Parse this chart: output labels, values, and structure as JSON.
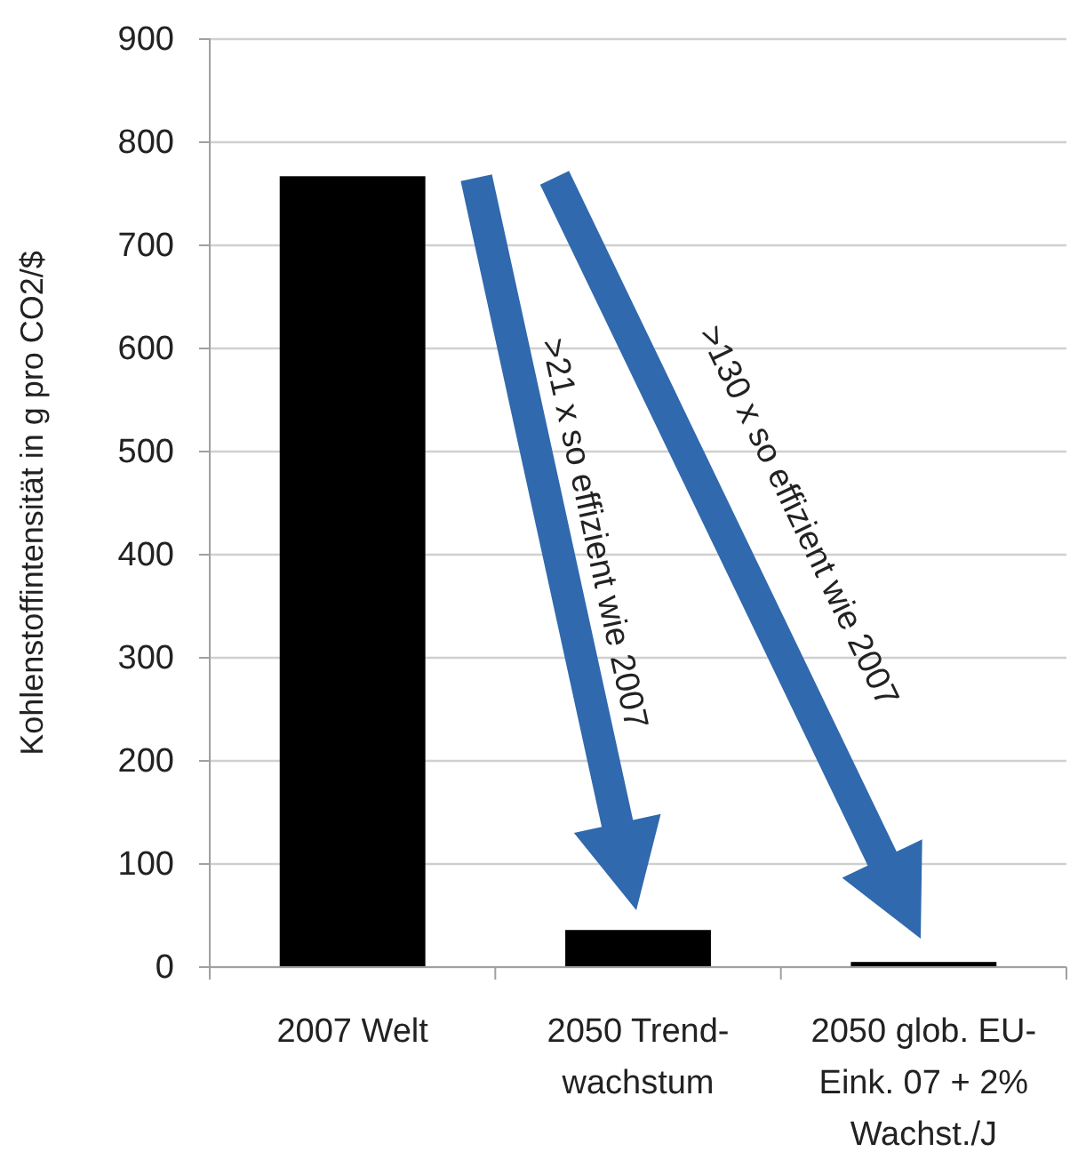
{
  "chart_data": {
    "type": "bar",
    "ylabel": "Kohlenstoffintensität  in g pro CO2/$",
    "categories": [
      "2007 Welt",
      "2050 Trend-wachstum",
      "2050 glob. EU-Eink. 07 + 2% Wachst./J"
    ],
    "values": [
      767,
      36,
      5
    ],
    "color": "#000000",
    "ylim": [
      0,
      900
    ],
    "yticks": [
      0,
      100,
      200,
      300,
      400,
      500,
      600,
      700,
      800,
      900
    ],
    "grid": "y",
    "annotations": [
      ">21 x so effizient wie 2007",
      ">130 x so effizient wie 2007"
    ]
  }
}
